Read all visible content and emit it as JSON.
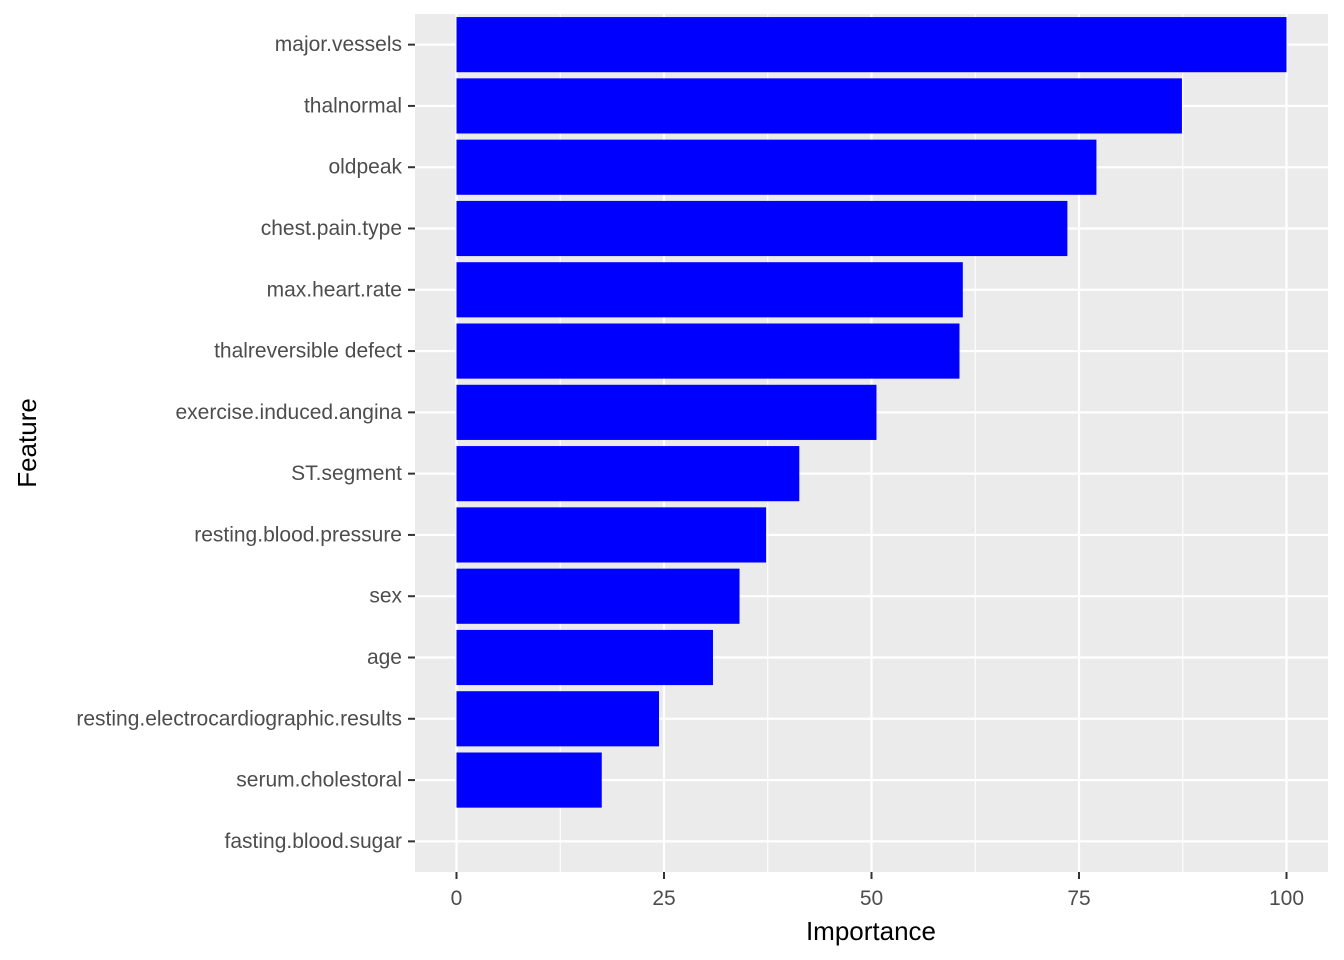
{
  "chart_data": {
    "type": "bar",
    "orientation": "horizontal",
    "title": "",
    "xlabel": "Importance",
    "ylabel": "Feature",
    "categories": [
      "major.vessels",
      "thalnormal",
      "oldpeak",
      "chest.pain.type",
      "max.heart.rate",
      "thalreversible defect",
      "exercise.induced.angina",
      "ST.segment",
      "resting.blood.pressure",
      "sex",
      "age",
      "resting.electrocardiographic.results",
      "serum.cholestoral",
      "fasting.blood.sugar"
    ],
    "values": [
      100,
      87.4,
      77.1,
      73.6,
      61.0,
      60.6,
      50.6,
      41.3,
      37.3,
      34.1,
      30.9,
      24.4,
      17.5,
      0
    ],
    "xlim": [
      -5,
      105
    ],
    "xticks": [
      0,
      25,
      50,
      75,
      100
    ],
    "bar_color": "#0000FF",
    "panel_background": "#EBEBEB",
    "grid": true,
    "legend": "none"
  }
}
